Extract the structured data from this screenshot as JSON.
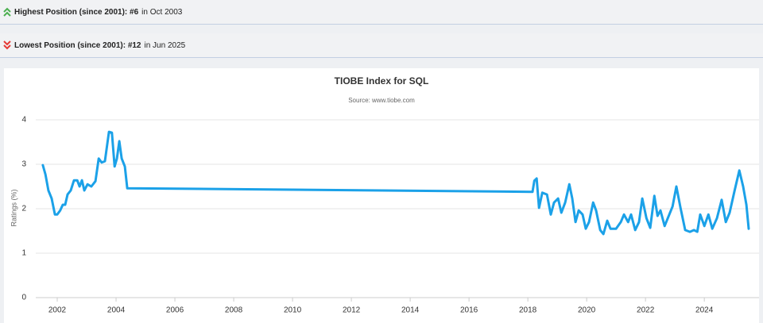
{
  "header": {
    "highest": {
      "label": "Highest Position (since 2001): #6",
      "detail": "in Oct 2003"
    },
    "lowest": {
      "label": "Lowest Position (since 2001): #12",
      "detail": "in Jun 2025"
    }
  },
  "chart_data": {
    "type": "line",
    "title": "TIOBE Index for SQL",
    "subtitle": "Source: www.tiobe.com",
    "y_label": "Ratings (%)",
    "x": [
      2001.51,
      2001.6,
      2001.7,
      2001.81,
      2001.92,
      2002.0,
      2002.1,
      2002.19,
      2002.27,
      2002.35,
      2002.46,
      2002.57,
      2002.68,
      2002.76,
      2002.84,
      2002.92,
      2003.03,
      2003.16,
      2003.3,
      2003.41,
      2003.51,
      2003.62,
      2003.76,
      2003.86,
      2003.95,
      2004.03,
      2004.11,
      2004.19,
      2004.3,
      2004.38,
      2018.16,
      2018.22,
      2018.3,
      2018.38,
      2018.49,
      2018.65,
      2018.78,
      2018.89,
      2019.03,
      2019.14,
      2019.27,
      2019.41,
      2019.51,
      2019.62,
      2019.73,
      2019.86,
      2019.97,
      2020.08,
      2020.22,
      2020.32,
      2020.46,
      2020.57,
      2020.7,
      2020.81,
      2021.0,
      2021.16,
      2021.27,
      2021.41,
      2021.51,
      2021.65,
      2021.78,
      2021.89,
      2022.03,
      2022.16,
      2022.3,
      2022.41,
      2022.51,
      2022.65,
      2022.81,
      2022.92,
      2023.05,
      2023.19,
      2023.35,
      2023.51,
      2023.65,
      2023.76,
      2023.86,
      2024.0,
      2024.14,
      2024.27,
      2024.43,
      2024.59,
      2024.73,
      2024.86,
      2025.03,
      2025.19,
      2025.32,
      2025.43,
      2025.51
    ],
    "series": [
      {
        "name": "SQL",
        "color": "#1ba1e8",
        "values": [
          2.98,
          2.77,
          2.41,
          2.23,
          1.87,
          1.87,
          1.96,
          2.09,
          2.09,
          2.32,
          2.41,
          2.64,
          2.64,
          2.5,
          2.64,
          2.41,
          2.55,
          2.5,
          2.62,
          3.13,
          3.04,
          3.07,
          3.73,
          3.71,
          2.95,
          3.13,
          3.52,
          3.13,
          2.95,
          2.46,
          2.38,
          2.63,
          2.68,
          2.02,
          2.36,
          2.32,
          1.87,
          2.14,
          2.23,
          1.91,
          2.14,
          2.55,
          2.23,
          1.7,
          1.96,
          1.87,
          1.55,
          1.7,
          2.14,
          1.96,
          1.52,
          1.43,
          1.73,
          1.55,
          1.55,
          1.7,
          1.87,
          1.7,
          1.87,
          1.52,
          1.7,
          2.23,
          1.79,
          1.57,
          2.29,
          1.84,
          1.96,
          1.61,
          1.87,
          2.05,
          2.5,
          2.02,
          1.52,
          1.48,
          1.52,
          1.48,
          1.87,
          1.61,
          1.87,
          1.55,
          1.79,
          2.2,
          1.7,
          1.91,
          2.41,
          2.86,
          2.5,
          2.09,
          1.55
        ]
      }
    ],
    "xlim": [
      2001.27,
      2025.86
    ],
    "xticks": [
      2002,
      2004,
      2006,
      2008,
      2010,
      2012,
      2014,
      2016,
      2018,
      2020,
      2022,
      2024
    ],
    "ylim": [
      0,
      4
    ],
    "yticks": [
      0,
      1,
      2,
      3,
      4
    ],
    "grid": true
  }
}
